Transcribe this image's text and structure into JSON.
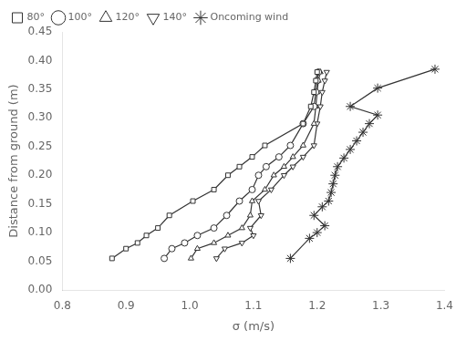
{
  "chart_data": {
    "type": "line",
    "xlabel": "σ (m/s)",
    "ylabel": "Distance from ground (m)",
    "xlim": [
      0.8,
      1.4
    ],
    "ylim": [
      0.0,
      0.45
    ],
    "xticks": [
      0.8,
      0.9,
      {
        "value": 1.0,
        "label": "1.0"
      },
      1.1,
      1.2,
      1.3,
      1.4
    ],
    "yticks": [
      {
        "value": 0.0,
        "label": "0.00"
      },
      0.05,
      {
        "value": 0.1,
        "label": "0.10"
      },
      0.15,
      {
        "value": 0.2,
        "label": "0.20"
      },
      0.25,
      {
        "value": 0.3,
        "label": "0.30"
      },
      0.35,
      {
        "value": 0.4,
        "label": "0.40"
      },
      0.45
    ],
    "color": "#333333",
    "grid": false,
    "legend": "upper left",
    "series": [
      {
        "name": "80°",
        "marker": "square",
        "x": [
          0.878,
          0.9,
          0.918,
          0.932,
          0.95,
          0.968,
          1.005,
          1.038,
          1.06,
          1.078,
          1.098,
          1.118,
          1.178,
          1.19,
          1.195,
          1.198,
          1.2
        ],
        "values": [
          0.055,
          0.072,
          0.082,
          0.095,
          0.108,
          0.13,
          0.155,
          0.175,
          0.2,
          0.215,
          0.232,
          0.252,
          0.29,
          0.32,
          0.345,
          0.365,
          0.38
        ]
      },
      {
        "name": "100°",
        "marker": "circle",
        "x": [
          0.96,
          0.972,
          0.992,
          1.012,
          1.038,
          1.058,
          1.078,
          1.098,
          1.108,
          1.12,
          1.14,
          1.158,
          1.178,
          1.195,
          1.198,
          1.2,
          1.202
        ],
        "values": [
          0.055,
          0.072,
          0.082,
          0.095,
          0.108,
          0.13,
          0.155,
          0.175,
          0.2,
          0.215,
          0.232,
          0.252,
          0.29,
          0.32,
          0.345,
          0.365,
          0.38
        ]
      },
      {
        "name": "120°",
        "marker": "triangle",
        "x": [
          1.002,
          1.012,
          1.038,
          1.06,
          1.082,
          1.095,
          1.098,
          1.118,
          1.132,
          1.148,
          1.162,
          1.178,
          1.195,
          1.198,
          1.2,
          1.202,
          1.205
        ],
        "values": [
          0.055,
          0.072,
          0.082,
          0.095,
          0.108,
          0.13,
          0.155,
          0.175,
          0.2,
          0.215,
          0.232,
          0.252,
          0.29,
          0.32,
          0.345,
          0.365,
          0.38
        ]
      },
      {
        "name": "140°",
        "marker": "triangle_down",
        "x": [
          1.042,
          1.055,
          1.082,
          1.1,
          1.095,
          1.112,
          1.108,
          1.128,
          1.148,
          1.162,
          1.178,
          1.195,
          1.2,
          1.205,
          1.208,
          1.212,
          1.215
        ],
        "values": [
          0.055,
          0.072,
          0.082,
          0.095,
          0.108,
          0.13,
          0.155,
          0.175,
          0.2,
          0.215,
          0.232,
          0.252,
          0.29,
          0.32,
          0.345,
          0.365,
          0.38
        ]
      },
      {
        "name": "Oncoming wind",
        "marker": "star",
        "x": [
          1.158,
          1.188,
          1.2,
          1.212,
          1.195,
          1.208,
          1.218,
          1.222,
          1.225,
          1.228,
          1.232,
          1.242,
          1.252,
          1.262,
          1.272,
          1.282,
          1.295,
          1.252,
          1.295,
          1.385
        ],
        "values": [
          0.055,
          0.09,
          0.1,
          0.112,
          0.13,
          0.145,
          0.155,
          0.17,
          0.185,
          0.2,
          0.215,
          0.23,
          0.245,
          0.26,
          0.275,
          0.29,
          0.305,
          0.32,
          0.352,
          0.385
        ]
      }
    ]
  }
}
